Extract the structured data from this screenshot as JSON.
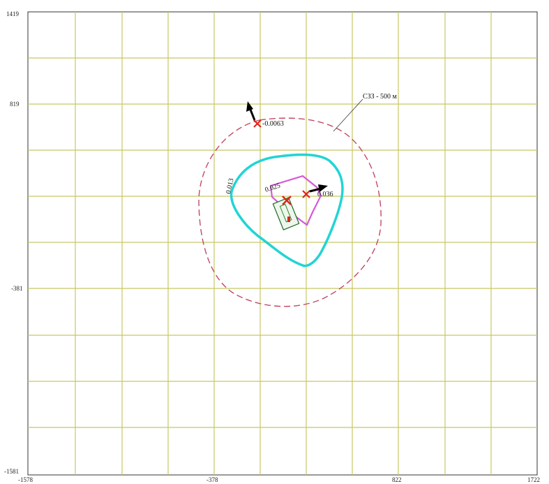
{
  "map": {
    "x_ticks": [
      "-1578",
      "-378",
      "822",
      "1722"
    ],
    "y_ticks": [
      "1419",
      "819",
      "-381",
      "-1581"
    ],
    "zone_label": "СЗЗ - 500 м",
    "labels": {
      "value_north": "-0.0063",
      "value_east": "0.036",
      "contour_outer": "0.013",
      "contour_inner": "0.025"
    },
    "colors": {
      "grid": "#c8c864",
      "frame": "#333333",
      "zone": "#c24a64",
      "contour_outer": "#22d4d4",
      "contour_inner": "#d65ad6",
      "marker": "#e0241e",
      "arrow": "#000000"
    }
  }
}
